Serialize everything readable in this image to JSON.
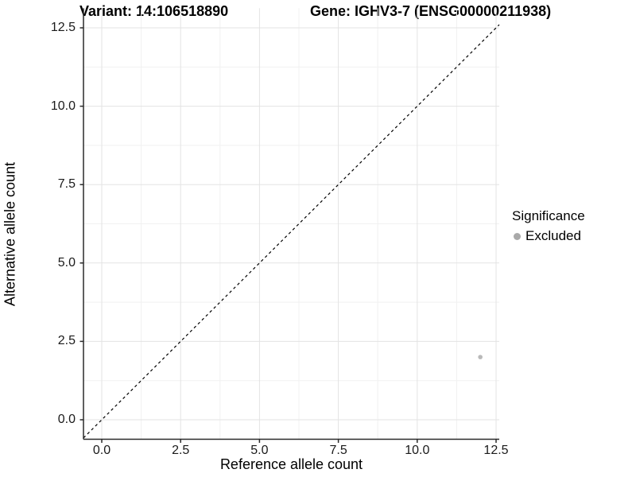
{
  "titles": {
    "variant": "Variant: 14:106518890",
    "gene": "Gene: IGHV3-7 (ENSG00000211938)"
  },
  "axes": {
    "x_label": "Reference allele count",
    "y_label": "Alternative allele count",
    "x_tick_labels": [
      "0.0",
      "2.5",
      "5.0",
      "7.5",
      "10.0",
      "12.5"
    ],
    "y_tick_labels": [
      "0.0",
      "2.5",
      "5.0",
      "7.5",
      "10.0",
      "12.5"
    ]
  },
  "legend": {
    "title": "Significance",
    "items": [
      {
        "label": "Excluded",
        "key_color": "#a9a9a9"
      }
    ]
  },
  "colors": {
    "point": "#b9b9b9",
    "legend_key": "#a9a9a9",
    "grid_major": "#e3e3e3",
    "grid_minor": "#f1f1f1",
    "axis_line": "#2a2a2a",
    "reference_line": "#000000",
    "background": "#ffffff"
  },
  "chart_data": {
    "type": "scatter",
    "title_left": "Variant: 14:106518890",
    "title_right": "Gene: IGHV3-7 (ENSG00000211938)",
    "xlabel": "Reference allele count",
    "ylabel": "Alternative allele count",
    "xlim": [
      -0.6,
      12.6
    ],
    "ylim": [
      -0.62,
      13.12
    ],
    "x_ticks": [
      0,
      2.5,
      5,
      7.5,
      10,
      12.5
    ],
    "y_ticks": [
      0,
      2.5,
      5,
      7.5,
      10,
      12.5
    ],
    "x_minor_ticks": [
      1.25,
      3.75,
      6.25,
      8.75,
      11.25
    ],
    "y_minor_ticks": [
      1.25,
      3.75,
      6.25,
      8.75,
      11.25
    ],
    "grid": "major+minor",
    "legend_position": "right",
    "series": [
      {
        "name": "Excluded",
        "color": "#b9b9b9",
        "points": [
          {
            "x": 12,
            "y": 2
          }
        ]
      }
    ],
    "reference_line": {
      "kind": "identity (y = x)",
      "slope": 1,
      "intercept": 0,
      "style": "dashed",
      "color": "#000000"
    }
  }
}
